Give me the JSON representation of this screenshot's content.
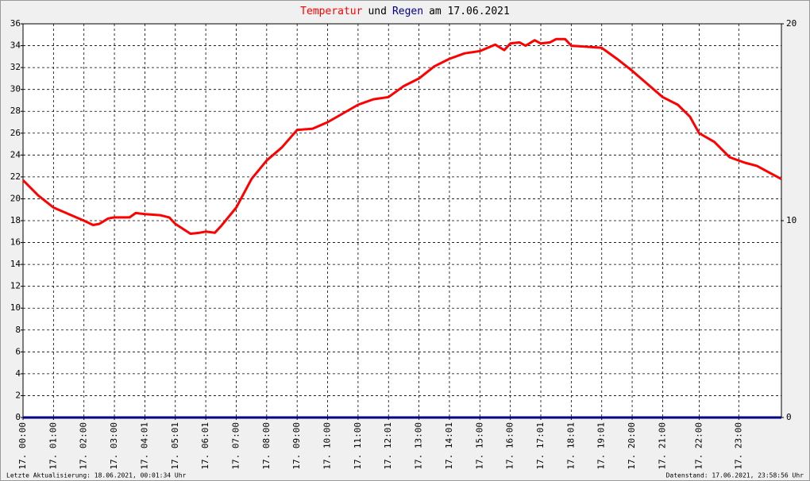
{
  "chart_data": {
    "type": "line",
    "title": [
      {
        "text": "Temperatur",
        "color": "#ff0000"
      },
      {
        "text": "und",
        "color": "#000000"
      },
      {
        "text": "Regen",
        "color": "#000080"
      },
      {
        "text": "am 17.06.2021",
        "color": "#000000"
      }
    ],
    "x": [
      0,
      0.5,
      1,
      1.5,
      2,
      2.3,
      2.5,
      2.8,
      3,
      3.5,
      3.7,
      4,
      4.5,
      4.8,
      5,
      5.5,
      5.8,
      6,
      6.3,
      6.5,
      7,
      7.5,
      8,
      8.5,
      9,
      9.5,
      10,
      10.5,
      11,
      11.5,
      12,
      12.5,
      13,
      13.5,
      14,
      14.5,
      15,
      15.5,
      15.8,
      16,
      16.3,
      16.5,
      16.8,
      17,
      17.3,
      17.5,
      17.8,
      18,
      18.5,
      19,
      19.5,
      20,
      20.5,
      21,
      21.5,
      21.9,
      22.2,
      22.7,
      23.2,
      23.7,
      24.1,
      24.5,
      24.9
    ],
    "series": [
      {
        "name": "Temperatur",
        "color": "#ff0000",
        "axis": "y",
        "values": [
          21.7,
          20.3,
          19.2,
          18.6,
          18.0,
          17.6,
          17.7,
          18.2,
          18.3,
          18.3,
          18.7,
          18.6,
          18.5,
          18.3,
          17.7,
          16.8,
          16.9,
          17.0,
          16.9,
          17.5,
          19.2,
          21.8,
          23.5,
          24.7,
          26.3,
          26.4,
          27.0,
          27.8,
          28.6,
          29.1,
          29.3,
          30.3,
          31.0,
          32.1,
          32.8,
          33.3,
          33.5,
          34.1,
          33.6,
          34.2,
          34.3,
          34.0,
          34.5,
          34.2,
          34.3,
          34.6,
          34.6,
          34.0,
          33.9,
          33.8,
          32.8,
          31.7,
          30.5,
          29.3,
          28.6,
          27.5,
          26.0,
          25.2,
          23.8,
          23.3,
          23.0,
          22.4,
          21.8
        ]
      },
      {
        "name": "Regen",
        "color": "#000080",
        "axis": "y2",
        "values": [
          0,
          0,
          0,
          0,
          0,
          0,
          0,
          0,
          0,
          0,
          0,
          0,
          0,
          0,
          0,
          0,
          0,
          0,
          0,
          0,
          0,
          0,
          0,
          0,
          0,
          0,
          0,
          0,
          0,
          0,
          0,
          0,
          0,
          0,
          0,
          0,
          0,
          0,
          0,
          0,
          0,
          0,
          0,
          0,
          0,
          0,
          0,
          0,
          0,
          0,
          0,
          0,
          0,
          0,
          0,
          0,
          0,
          0,
          0,
          0,
          0,
          0,
          0
        ]
      }
    ],
    "xlim": [
      0,
      24.9
    ],
    "xticks": [
      {
        "value": 0,
        "label": "17. 00:00"
      },
      {
        "value": 1,
        "label": "17. 01:00"
      },
      {
        "value": 2,
        "label": "17. 02:00"
      },
      {
        "value": 3,
        "label": "17. 03:00"
      },
      {
        "value": 4,
        "label": "17. 04:01"
      },
      {
        "value": 5,
        "label": "17. 05:01"
      },
      {
        "value": 6,
        "label": "17. 06:01"
      },
      {
        "value": 7,
        "label": "17. 07:00"
      },
      {
        "value": 8,
        "label": "17. 08:00"
      },
      {
        "value": 9,
        "label": "17. 09:00"
      },
      {
        "value": 10,
        "label": "17. 10:00"
      },
      {
        "value": 11,
        "label": "17. 11:00"
      },
      {
        "value": 12,
        "label": "17. 12:01"
      },
      {
        "value": 13,
        "label": "17. 13:00"
      },
      {
        "value": 14,
        "label": "17. 14:01"
      },
      {
        "value": 15,
        "label": "17. 15:00"
      },
      {
        "value": 16,
        "label": "17. 16:00"
      },
      {
        "value": 17,
        "label": "17. 17:01"
      },
      {
        "value": 18,
        "label": "17. 18:01"
      },
      {
        "value": 19,
        "label": "17. 19:01"
      },
      {
        "value": 20,
        "label": "17. 20:00"
      },
      {
        "value": 21,
        "label": "17. 21:00"
      },
      {
        "value": 22.2,
        "label": "17. 22:00"
      },
      {
        "value": 23.5,
        "label": "17. 23:00"
      }
    ],
    "ylim": [
      0,
      36
    ],
    "yticks": [
      0,
      2,
      4,
      6,
      8,
      10,
      12,
      14,
      16,
      18,
      20,
      22,
      24,
      26,
      28,
      30,
      32,
      34,
      36
    ],
    "y2lim": [
      0,
      20
    ],
    "y2ticks": [
      0,
      10,
      20
    ],
    "grid": true,
    "footer_left": "Letzte Aktualisierung: 18.06.2021, 00:01:34 Uhr",
    "footer_right": "Datenstand: 17.06.2021, 23:58:56 Uhr"
  }
}
